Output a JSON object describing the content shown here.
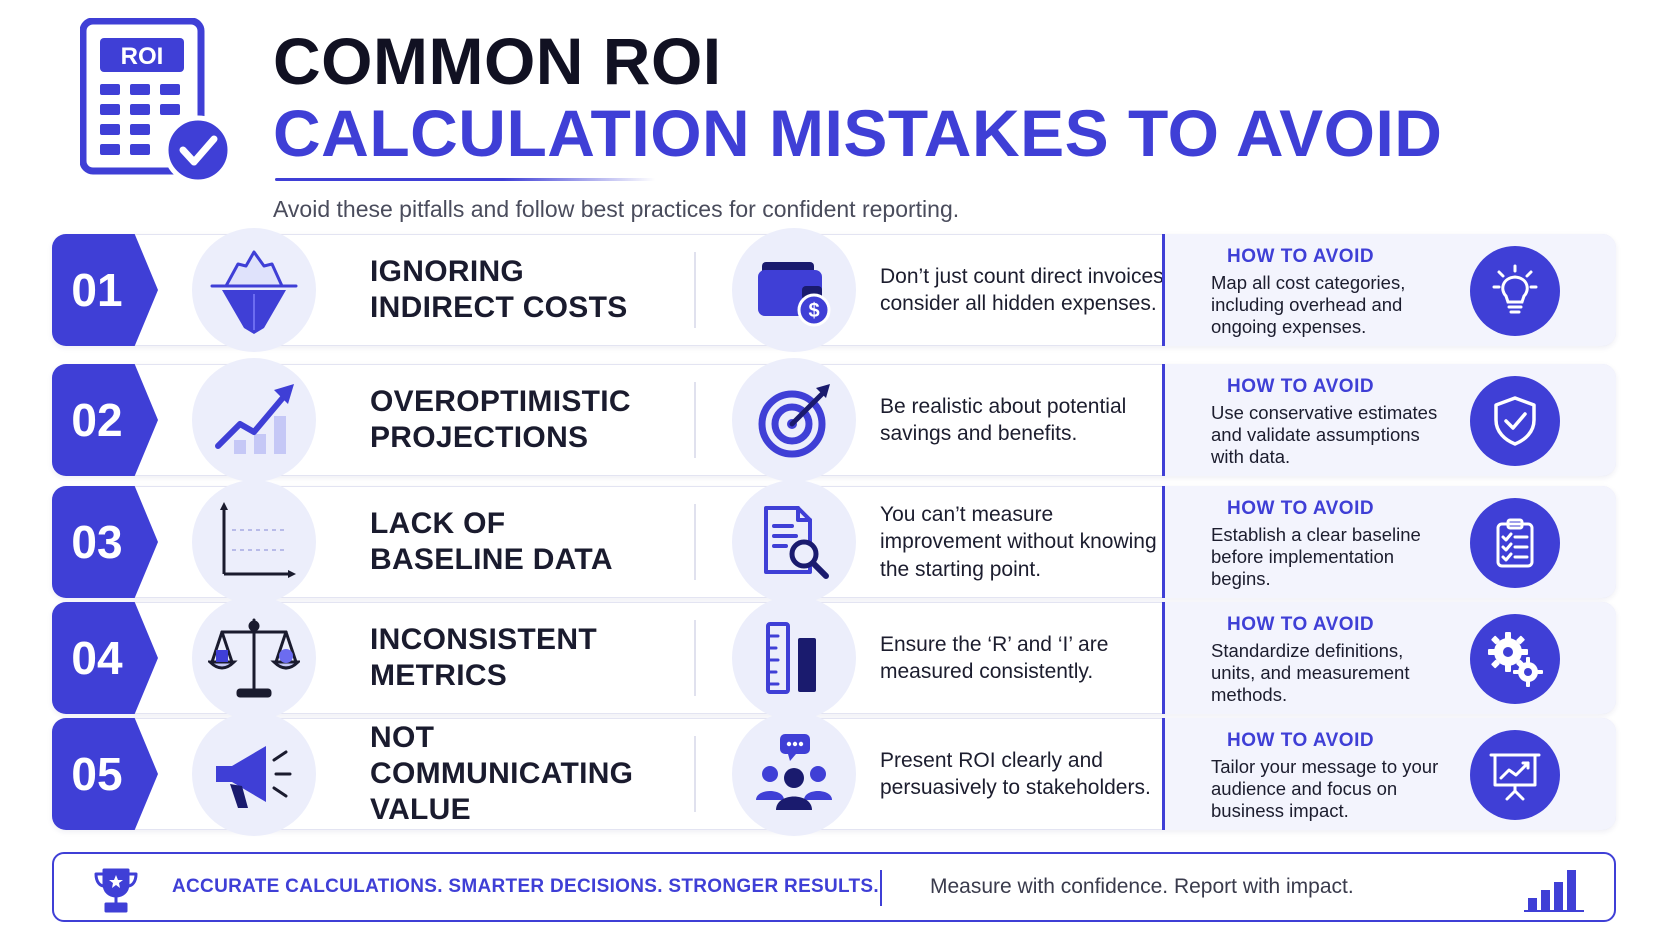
{
  "header": {
    "icon_label": "ROI",
    "title_line1": "COMMON ROI",
    "title_line2": "CALCULATION MISTAKES TO AVOID",
    "subtitle": "Avoid these pitfalls and follow best practices for confident reporting."
  },
  "how_to_avoid_label": "HOW TO AVOID",
  "rows": [
    {
      "number": "01",
      "mistake_line1": "IGNORING",
      "mistake_line2": "INDIRECT COSTS",
      "description": "Don’t just count direct invoices; consider all hidden expenses.",
      "how_to_avoid": "Map all cost categories, including overhead and ongoing expenses.",
      "icons": [
        "iceberg-icon",
        "wallet-dollar-icon",
        "lightbulb-icon"
      ]
    },
    {
      "number": "02",
      "mistake_line1": "OVEROPTIMISTIC",
      "mistake_line2": "PROJECTIONS",
      "description": "Be realistic about potential savings and benefits.",
      "how_to_avoid": "Use conservative estimates and validate assumptions with data.",
      "icons": [
        "trend-up-icon",
        "target-icon",
        "shield-check-icon"
      ]
    },
    {
      "number": "03",
      "mistake_line1": "LACK OF",
      "mistake_line2": "BASELINE DATA",
      "description": "You can’t measure improvement without knowing the starting point.",
      "how_to_avoid": "Establish a clear baseline before implementation begins.",
      "icons": [
        "empty-chart-icon",
        "document-search-icon",
        "clipboard-checklist-icon"
      ]
    },
    {
      "number": "04",
      "mistake_line1": "INCONSISTENT",
      "mistake_line2": "METRICS",
      "description": "Ensure the ‘R’ and ‘I’ are measured consistently.",
      "how_to_avoid": "Standardize definitions, units, and measurement methods.",
      "icons": [
        "scales-icon",
        "ruler-icon",
        "gears-icon"
      ]
    },
    {
      "number": "05",
      "mistake_line1": "NOT COMMUNICATING",
      "mistake_line2": "VALUE",
      "description": "Present ROI clearly and persuasively to stakeholders.",
      "how_to_avoid": "Tailor your message to your audience and focus on business impact.",
      "icons": [
        "megaphone-icon",
        "team-chat-icon",
        "presentation-icon"
      ]
    }
  ],
  "footer": {
    "left_text": "ACCURATE CALCULATIONS. SMARTER DECISIONS. STRONGER RESULTS.",
    "right_text": "Measure with confidence. Report with impact."
  },
  "colors": {
    "accent": "#3f3fd6",
    "title_dark": "#111122",
    "icon_bg": "#eceefb",
    "panel_bg": "#f3f4fd"
  }
}
